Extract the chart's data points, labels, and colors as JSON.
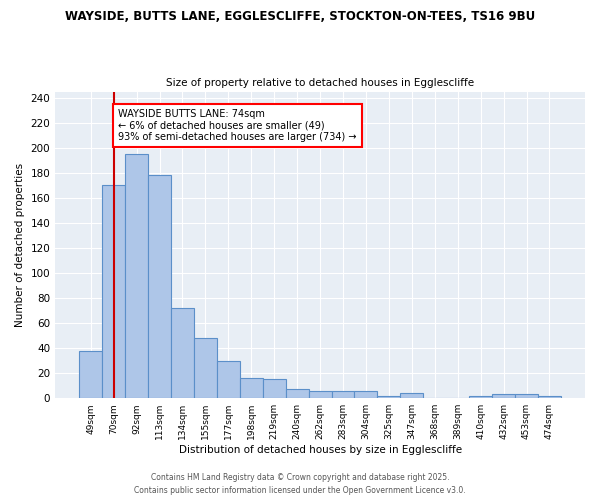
{
  "title1": "WAYSIDE, BUTTS LANE, EGGLESCLIFFE, STOCKTON-ON-TEES, TS16 9BU",
  "title2": "Size of property relative to detached houses in Egglescliffe",
  "xlabel": "Distribution of detached houses by size in Egglescliffe",
  "ylabel": "Number of detached properties",
  "bar_labels": [
    "49sqm",
    "70sqm",
    "92sqm",
    "113sqm",
    "134sqm",
    "155sqm",
    "177sqm",
    "198sqm",
    "219sqm",
    "240sqm",
    "262sqm",
    "283sqm",
    "304sqm",
    "325sqm",
    "347sqm",
    "368sqm",
    "389sqm",
    "410sqm",
    "432sqm",
    "453sqm",
    "474sqm"
  ],
  "bar_values": [
    38,
    170,
    195,
    178,
    72,
    48,
    30,
    16,
    15,
    7,
    6,
    6,
    6,
    2,
    4,
    0,
    0,
    2,
    3,
    3,
    2
  ],
  "bar_color": "#aec6e8",
  "bar_edge_color": "#5b8fc9",
  "bg_color": "#e8eef5",
  "annotation_title": "WAYSIDE BUTTS LANE: 74sqm",
  "annotation_line1": "← 6% of detached houses are smaller (49)",
  "annotation_line2": "93% of semi-detached houses are larger (734) →",
  "vline_color": "#cc0000",
  "ylim": [
    0,
    245
  ],
  "yticks": [
    0,
    20,
    40,
    60,
    80,
    100,
    120,
    140,
    160,
    180,
    200,
    220,
    240
  ],
  "footer1": "Contains HM Land Registry data © Crown copyright and database right 2025.",
  "footer2": "Contains public sector information licensed under the Open Government Licence v3.0."
}
